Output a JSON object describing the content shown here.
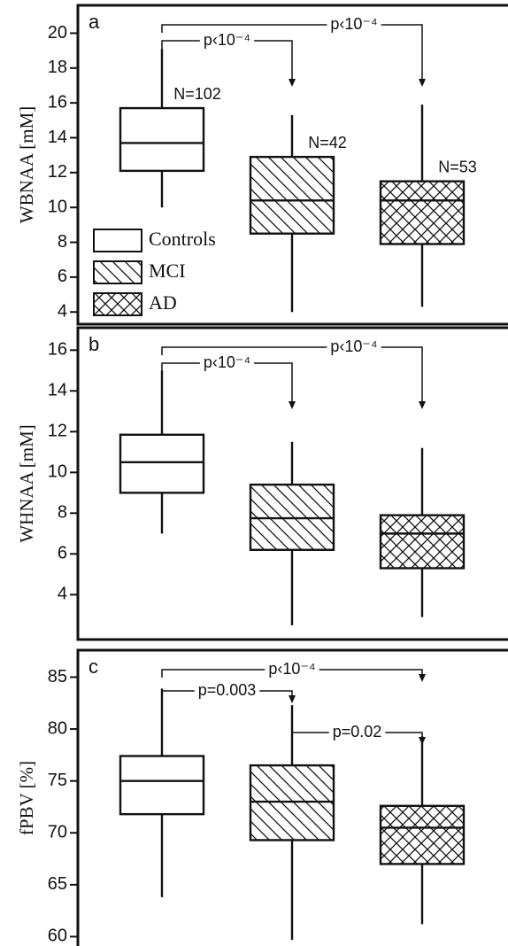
{
  "chart_data": [
    {
      "type": "box",
      "panel_label": "a",
      "ylabel": "WBNAA [mM]",
      "categories": [
        "Controls",
        "MCI",
        "AD"
      ],
      "hatch": [
        "none",
        "diagonal",
        "crosshatch"
      ],
      "whisker_low": [
        10.0,
        4.0,
        4.3
      ],
      "q1": [
        12.1,
        8.5,
        7.9
      ],
      "median": [
        13.7,
        10.4,
        10.4
      ],
      "q3": [
        15.7,
        12.9,
        11.5
      ],
      "whisker_high": [
        19.1,
        15.3,
        15.9
      ],
      "n_labels": [
        "N=102",
        "N=42",
        "N=53"
      ],
      "comparisons": [
        {
          "pair": [
            "Controls",
            "AD"
          ],
          "label": "p‹10⁻⁴"
        },
        {
          "pair": [
            "Controls",
            "MCI"
          ],
          "label": "p‹10⁻⁴"
        }
      ],
      "legend": true,
      "ylim": [
        3.3,
        21.6
      ],
      "yticks": [
        4,
        6,
        8,
        10,
        12,
        14,
        16,
        18,
        20
      ]
    },
    {
      "type": "box",
      "panel_label": "b",
      "ylabel": "WHNAA [mM]",
      "categories": [
        "Controls",
        "MCI",
        "AD"
      ],
      "hatch": [
        "none",
        "diagonal",
        "crosshatch"
      ],
      "whisker_low": [
        7.0,
        2.5,
        2.9
      ],
      "q1": [
        9.0,
        6.2,
        5.3
      ],
      "median": [
        10.5,
        7.75,
        7.0
      ],
      "q3": [
        11.85,
        9.4,
        7.9
      ],
      "whisker_high": [
        15.0,
        11.5,
        11.2
      ],
      "comparisons": [
        {
          "pair": [
            "Controls",
            "AD"
          ],
          "label": "p‹10⁻⁴"
        },
        {
          "pair": [
            "Controls",
            "MCI"
          ],
          "label": "p‹10⁻⁴"
        }
      ],
      "ylim": [
        1.8,
        17.1
      ],
      "yticks": [
        4,
        6,
        8,
        10,
        12,
        14,
        16
      ]
    },
    {
      "type": "box",
      "panel_label": "c",
      "ylabel": "fPBV [%]",
      "categories": [
        "Controls",
        "MCI",
        "AD"
      ],
      "hatch": [
        "none",
        "diagonal",
        "crosshatch"
      ],
      "whisker_low": [
        63.8,
        59.7,
        61.2
      ],
      "q1": [
        71.8,
        69.3,
        67.0
      ],
      "median": [
        75.0,
        73.0,
        70.5
      ],
      "q3": [
        77.4,
        76.5,
        72.6
      ],
      "whisker_high": [
        83.9,
        82.3,
        79.3
      ],
      "comparisons": [
        {
          "pair": [
            "Controls",
            "AD"
          ],
          "label": "p‹10⁻⁴"
        },
        {
          "pair": [
            "Controls",
            "MCI"
          ],
          "label": "p=0.003"
        },
        {
          "pair": [
            "MCI",
            "AD"
          ],
          "label": "p=0.02"
        }
      ],
      "ylim": [
        59.1,
        87.6
      ],
      "yticks": [
        60,
        65,
        70,
        75,
        80,
        85
      ]
    }
  ]
}
